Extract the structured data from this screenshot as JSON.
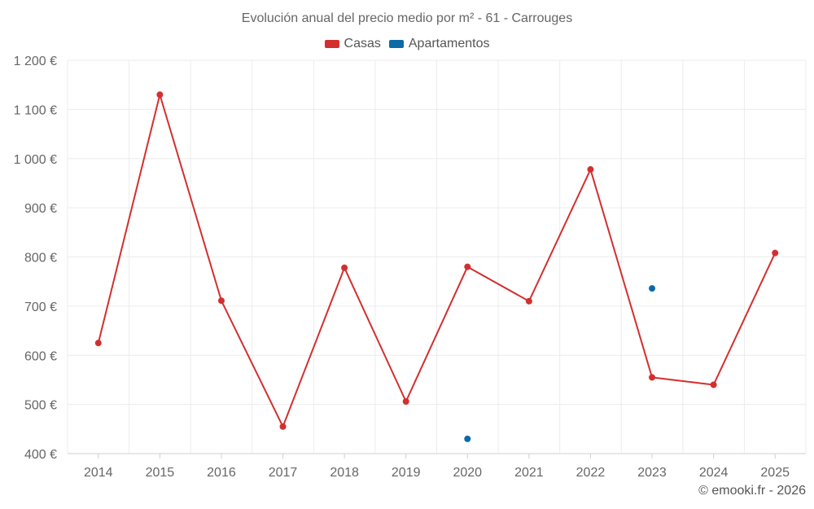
{
  "chart_data": {
    "type": "line",
    "title": "Evolución anual del precio medio por m² - 61 - Carrouges",
    "categories": [
      "2014",
      "2015",
      "2016",
      "2017",
      "2018",
      "2019",
      "2020",
      "2021",
      "2022",
      "2023",
      "2024",
      "2025"
    ],
    "ylim": [
      400,
      1200
    ],
    "yticks": [
      400,
      500,
      600,
      700,
      800,
      900,
      1000,
      1100,
      1200
    ],
    "ytick_labels": [
      "400 €",
      "500 €",
      "600 €",
      "700 €",
      "800 €",
      "900 €",
      "1 000 €",
      "1 100 €",
      "1 200 €"
    ],
    "grid": true,
    "legend_position": "top-center",
    "series": [
      {
        "name": "Casas",
        "color": "#d32f2f",
        "values": [
          625,
          1130,
          711,
          455,
          778,
          506,
          780,
          710,
          978,
          555,
          540,
          808
        ]
      },
      {
        "name": "Apartamentos",
        "color": "#0d6aa8",
        "values": [
          null,
          null,
          null,
          null,
          null,
          null,
          430,
          null,
          null,
          736,
          null,
          null
        ]
      }
    ]
  },
  "credit": "© emooki.fr - 2026"
}
